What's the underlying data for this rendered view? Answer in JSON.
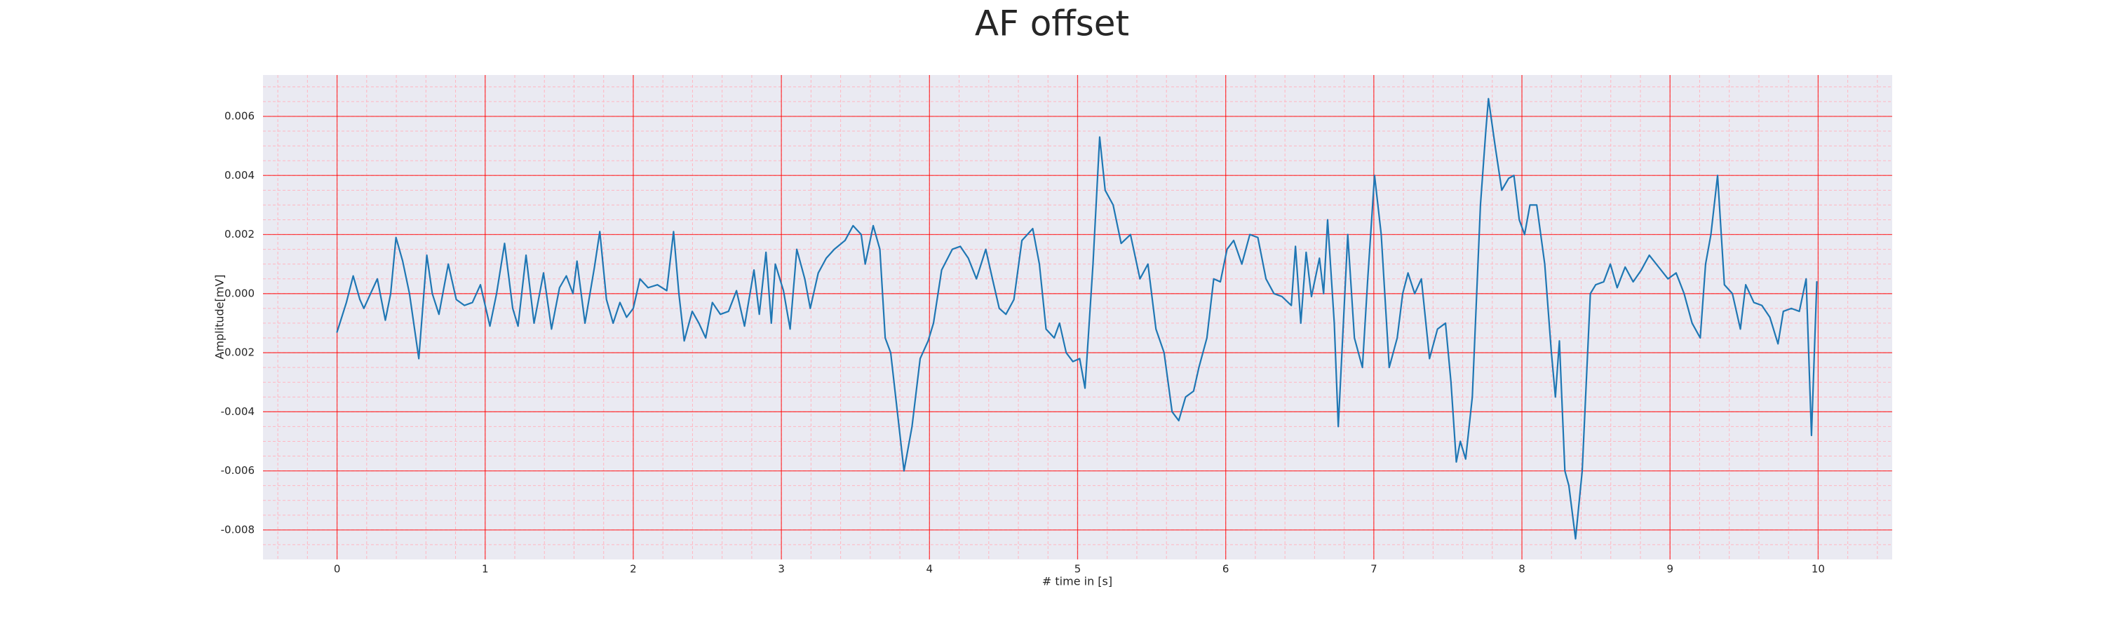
{
  "chart_data": {
    "type": "line",
    "title": "AF offset",
    "xlabel": "# time in [s]",
    "ylabel": "Amplitude[mV]",
    "xlim": [
      -0.5,
      10.5
    ],
    "ylim": [
      -0.009,
      0.0074
    ],
    "xticks": [
      0,
      1,
      2,
      3,
      4,
      5,
      6,
      7,
      8,
      9,
      10
    ],
    "yticks": [
      -0.008,
      -0.006,
      -0.004,
      -0.002,
      {
        "value": 0,
        "label": "0.000"
      },
      0.002,
      0.004,
      0.006
    ],
    "grid": true,
    "minor_grid": true,
    "series": [
      {
        "color": "#1f77b4",
        "x": [
          0,
          0.063,
          0.109,
          0.154,
          0.181,
          0.226,
          0.272,
          0.326,
          0.362,
          0.398,
          0.443,
          0.489,
          0.552,
          0.606,
          0.643,
          0.688,
          0.751,
          0.805,
          0.86,
          0.914,
          0.968,
          1.032,
          1.077,
          1.131,
          1.186,
          1.222,
          1.276,
          1.33,
          1.394,
          1.448,
          1.502,
          1.548,
          1.593,
          1.62,
          1.674,
          1.738,
          1.774,
          1.819,
          1.864,
          1.91,
          1.955,
          2.0,
          2.045,
          2.1,
          2.163,
          2.226,
          2.272,
          2.308,
          2.344,
          2.398,
          2.443,
          2.489,
          2.534,
          2.588,
          2.643,
          2.697,
          2.751,
          2.815,
          2.851,
          2.896,
          2.932,
          2.959,
          3.014,
          3.059,
          3.104,
          3.158,
          3.195,
          3.249,
          3.303,
          3.357,
          3.43,
          3.484,
          3.539,
          3.566,
          3.62,
          3.665,
          3.701,
          3.738,
          3.783,
          3.828,
          3.882,
          3.937,
          3.991,
          4.027,
          4.082,
          4.154,
          4.208,
          4.262,
          4.317,
          4.38,
          4.425,
          4.471,
          4.516,
          4.57,
          4.624,
          4.697,
          4.742,
          4.787,
          4.842,
          4.878,
          4.923,
          4.968,
          5.014,
          5.05,
          5.104,
          5.149,
          5.186,
          5.24,
          5.294,
          5.357,
          5.421,
          5.475,
          5.529,
          5.584,
          5.638,
          5.683,
          5.729,
          5.783,
          5.819,
          5.873,
          5.919,
          5.964,
          6.009,
          6.054,
          6.109,
          6.163,
          6.217,
          6.272,
          6.326,
          6.38,
          6.443,
          6.471,
          6.507,
          6.543,
          6.579,
          6.633,
          6.661,
          6.688,
          6.733,
          6.76,
          6.824,
          6.869,
          6.923,
          6.959,
          7.005,
          7.05,
          7.104,
          7.158,
          7.195,
          7.231,
          7.276,
          7.321,
          7.376,
          7.43,
          7.484,
          7.521,
          7.557,
          7.584,
          7.62,
          7.665,
          7.72,
          7.756,
          7.774,
          7.819,
          7.864,
          7.91,
          7.946,
          7.982,
          8.018,
          8.054,
          8.1,
          8.154,
          8.199,
          8.226,
          8.253,
          8.29,
          8.317,
          8.362,
          8.407,
          8.462,
          8.498,
          8.552,
          8.597,
          8.643,
          8.697,
          8.751,
          8.806,
          8.86,
          8.923,
          8.986,
          9.041,
          9.095,
          9.149,
          9.204,
          9.24,
          9.276,
          9.321,
          9.367,
          9.421,
          9.475,
          9.511,
          9.566,
          9.62,
          9.674,
          9.729,
          9.765,
          9.819,
          9.873,
          9.919,
          9.955,
          9.991
        ],
        "values": [
          -0.0013,
          -0.0003,
          0.0006,
          -0.0002,
          -0.0005,
          0.0,
          0.0005,
          -0.0009,
          0.0,
          0.0019,
          0.0011,
          0.0,
          -0.0022,
          0.0013,
          0.0,
          -0.0007,
          0.001,
          -0.0002,
          -0.0004,
          -0.0003,
          0.0003,
          -0.0011,
          0.0,
          0.0017,
          -0.0005,
          -0.0011,
          0.0013,
          -0.001,
          0.0007,
          -0.0012,
          0.0002,
          0.0006,
          0.0,
          0.0011,
          -0.001,
          0.0009,
          0.0021,
          -0.0002,
          -0.001,
          -0.0003,
          -0.0008,
          -0.0005,
          0.0005,
          0.0002,
          0.0003,
          0.0001,
          0.0021,
          0.0,
          -0.0016,
          -0.0006,
          -0.001,
          -0.0015,
          -0.0003,
          -0.0007,
          -0.0006,
          0.0001,
          -0.0011,
          0.0008,
          -0.0007,
          0.0014,
          -0.001,
          0.001,
          0.0001,
          -0.0012,
          0.0015,
          0.0005,
          -0.0005,
          0.0007,
          0.0012,
          0.0015,
          0.0018,
          0.0023,
          0.002,
          0.001,
          0.0023,
          0.0015,
          -0.0015,
          -0.002,
          -0.004,
          -0.006,
          -0.0045,
          -0.0022,
          -0.0016,
          -0.001,
          0.0008,
          0.0015,
          0.0016,
          0.0012,
          0.0005,
          0.0015,
          0.0005,
          -0.0005,
          -0.0007,
          -0.0002,
          0.0018,
          0.0022,
          0.001,
          -0.0012,
          -0.0015,
          -0.001,
          -0.002,
          -0.0023,
          -0.0022,
          -0.0032,
          0.001,
          0.0053,
          0.0035,
          0.003,
          0.0017,
          0.002,
          0.0005,
          0.001,
          -0.0012,
          -0.002,
          -0.004,
          -0.0043,
          -0.0035,
          -0.0033,
          -0.0025,
          -0.0015,
          0.0005,
          0.0004,
          0.0015,
          0.0018,
          0.001,
          0.002,
          0.0019,
          0.0005,
          0.0,
          -0.0001,
          -0.0004,
          0.0016,
          -0.001,
          0.0014,
          -0.0001,
          0.0012,
          0.0,
          0.0025,
          -0.001,
          -0.0045,
          0.002,
          -0.0015,
          -0.0025,
          0.0005,
          0.004,
          0.002,
          -0.0025,
          -0.0015,
          0.0,
          0.0007,
          0.0,
          0.0005,
          -0.0022,
          -0.0012,
          -0.001,
          -0.003,
          -0.0057,
          -0.005,
          -0.0056,
          -0.0035,
          0.003,
          0.0055,
          0.0066,
          0.005,
          0.0035,
          0.0039,
          0.004,
          0.0025,
          0.002,
          0.003,
          0.003,
          0.001,
          -0.002,
          -0.0035,
          -0.0016,
          -0.006,
          -0.0065,
          -0.0083,
          -0.006,
          0.0,
          0.0003,
          0.0004,
          0.001,
          0.0002,
          0.0009,
          0.0004,
          0.0008,
          0.0013,
          0.0009,
          0.0005,
          0.0007,
          0.0,
          -0.001,
          -0.0015,
          0.001,
          0.002,
          0.004,
          0.0003,
          0.0,
          -0.0012,
          0.0003,
          -0.0003,
          -0.0004,
          -0.0008,
          -0.0017,
          -0.0006,
          -0.0005,
          -0.0006,
          0.0005,
          -0.0048,
          0.0004
        ]
      }
    ]
  }
}
